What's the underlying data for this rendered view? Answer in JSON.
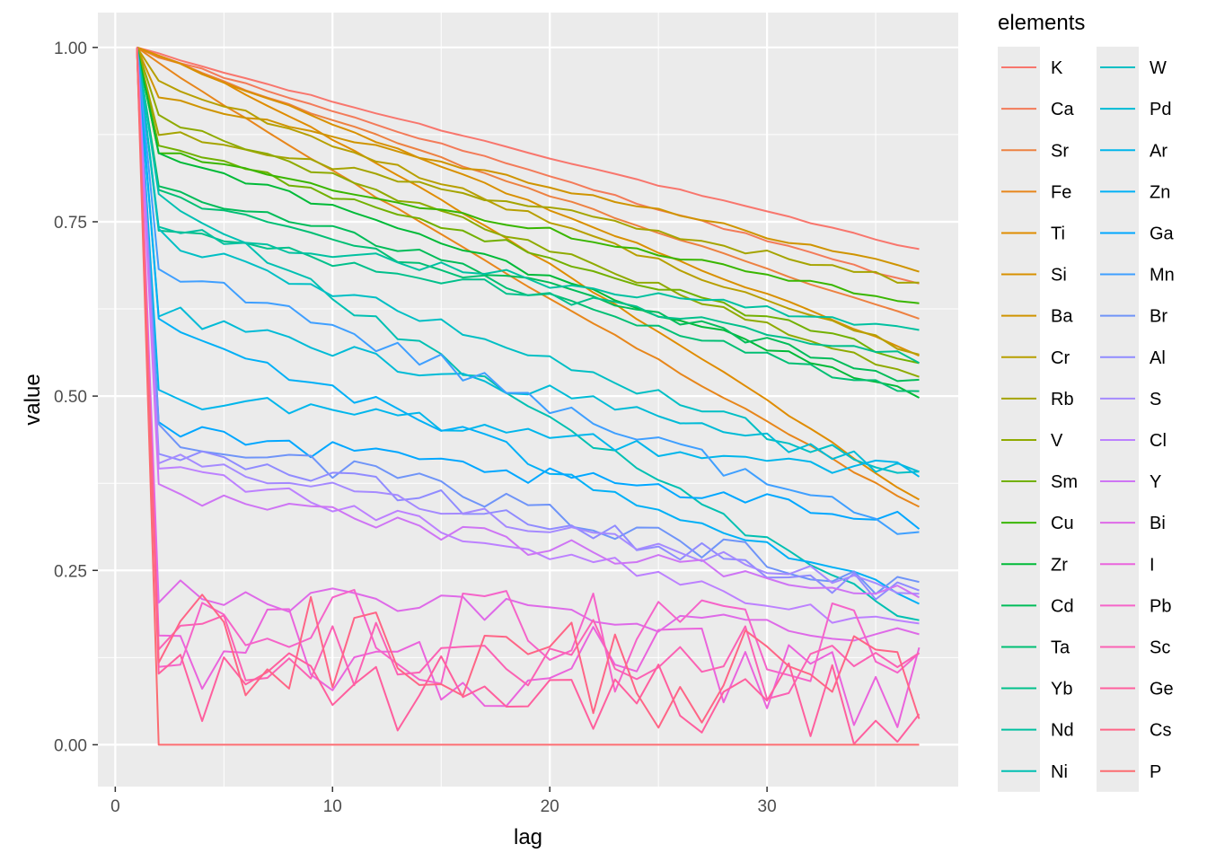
{
  "chart_data": {
    "type": "line",
    "xlabel": "lag",
    "ylabel": "value",
    "xlim": [
      -0.8,
      38.8
    ],
    "ylim": [
      -0.06,
      1.05
    ],
    "x_ticks": [
      0,
      10,
      20,
      30
    ],
    "x_tick_labels": [
      "0",
      "10",
      "20",
      "30"
    ],
    "y_ticks": [
      0,
      0.25,
      0.5,
      0.75,
      1.0
    ],
    "y_tick_labels": [
      "0.00",
      "0.25",
      "0.50",
      "0.75",
      "1.00"
    ],
    "grid": true,
    "legend": {
      "title": "elements",
      "position": "right",
      "columns": 2
    },
    "lag_first": 1,
    "lag_last": 37,
    "series": [
      {
        "name": "K",
        "color": "#F8766D",
        "end": 0.71,
        "curve": 0.95,
        "noise": 0.003
      },
      {
        "name": "Ca",
        "color": "#F37B59",
        "end": 0.66,
        "curve": 0.95,
        "noise": 0.004
      },
      {
        "name": "Sr",
        "color": "#ED8141",
        "end": 0.61,
        "curve": 0.95,
        "noise": 0.004
      },
      {
        "name": "Fe",
        "color": "#E7861B",
        "end": 0.34,
        "curve": 0.95,
        "noise": 0.004
      },
      {
        "name": "Ti",
        "color": "#DF8C00",
        "end": 0.35,
        "curve": 1.15,
        "noise": 0.004
      },
      {
        "name": "Si",
        "color": "#D89000",
        "end": 0.56,
        "curve": 1.0,
        "noise": 0.005
      },
      {
        "name": "Ba",
        "color": "#CF9400",
        "end": 0.68,
        "drop": 0.93,
        "noise": 0.004
      },
      {
        "name": "Cr",
        "color": "#B79F00",
        "end": 0.56,
        "drop": 0.95,
        "noise": 0.005
      },
      {
        "name": "Rb",
        "color": "#A5A400",
        "end": 0.66,
        "drop": 0.88,
        "noise": 0.006
      },
      {
        "name": "V",
        "color": "#8FAA00",
        "end": 0.53,
        "drop": 0.9,
        "noise": 0.006
      },
      {
        "name": "Sm",
        "color": "#72B000",
        "end": 0.55,
        "drop": 0.86,
        "noise": 0.006
      },
      {
        "name": "Cu",
        "color": "#39B600",
        "end": 0.63,
        "drop": 0.85,
        "noise": 0.005
      },
      {
        "name": "Zr",
        "color": "#00BA38",
        "end": 0.5,
        "drop": 0.85,
        "noise": 0.006
      },
      {
        "name": "Cd",
        "color": "#00BC59",
        "end": 0.52,
        "drop": 0.8,
        "noise": 0.008
      },
      {
        "name": "Ta",
        "color": "#00BF74",
        "end": 0.5,
        "drop": 0.79,
        "noise": 0.008
      },
      {
        "name": "Yb",
        "color": "#00C08B",
        "end": 0.55,
        "drop": 0.74,
        "noise": 0.01
      },
      {
        "name": "Nd",
        "color": "#00C1A0",
        "end": 0.59,
        "drop": 0.74,
        "noise": 0.01
      },
      {
        "name": "Ni",
        "color": "#00C0B2",
        "end": 0.17,
        "drop": 0.78,
        "noise": 0.01
      },
      {
        "name": "W",
        "color": "#00BFC4",
        "end": 0.38,
        "drop": 0.73,
        "noise": 0.012
      },
      {
        "name": "Pd",
        "color": "#00BBD6",
        "end": 0.39,
        "drop": 0.62,
        "noise": 0.014
      },
      {
        "name": "Ar",
        "color": "#00B6EB",
        "end": 0.39,
        "drop": 0.5,
        "noise": 0.014
      },
      {
        "name": "Zn",
        "color": "#00B0F6",
        "end": 0.21,
        "drop": 0.6,
        "noise": 0.015
      },
      {
        "name": "Ga",
        "color": "#00A7FF",
        "end": 0.32,
        "drop": 0.45,
        "noise": 0.014
      },
      {
        "name": "Mn",
        "color": "#3F9FFF",
        "end": 0.3,
        "drop": 0.69,
        "noise": 0.015
      },
      {
        "name": "Br",
        "color": "#6F94F8",
        "end": 0.22,
        "drop": 0.45,
        "noise": 0.018
      },
      {
        "name": "Al",
        "color": "#908BFF",
        "end": 0.21,
        "drop": 0.43,
        "noise": 0.018
      },
      {
        "name": "S",
        "color": "#A58AFF",
        "end": 0.22,
        "drop": 0.41,
        "noise": 0.012
      },
      {
        "name": "Cl",
        "color": "#BC81FF",
        "end": 0.16,
        "drop": 0.4,
        "noise": 0.014
      },
      {
        "name": "Y",
        "color": "#CE75F4",
        "end": 0.21,
        "drop": 0.36,
        "noise": 0.016
      },
      {
        "name": "Bi",
        "color": "#DE6AE8",
        "end": 0.16,
        "drop": 0.22,
        "noise": 0.02
      },
      {
        "name": "I",
        "color": "#EA64DC",
        "end": 0.09,
        "drop": 0.15,
        "noise": 0.035
      },
      {
        "name": "Pb",
        "color": "#F564C9",
        "end": 0.13,
        "drop": 0.17,
        "noise": 0.035
      },
      {
        "name": "Sc",
        "color": "#FB62B4",
        "end": 0.11,
        "drop": 0.15,
        "noise": 0.03
      },
      {
        "name": "Ge",
        "color": "#FF5F9E",
        "end": 0.05,
        "drop": 0.09,
        "noise": 0.03
      },
      {
        "name": "Cs",
        "color": "#FF6586",
        "end": 0.07,
        "drop": 0.16,
        "noise": 0.04
      },
      {
        "name": "P",
        "color": "#FC6C71",
        "end": 0.0,
        "drop": 0.0,
        "noise": 0.0
      }
    ]
  }
}
